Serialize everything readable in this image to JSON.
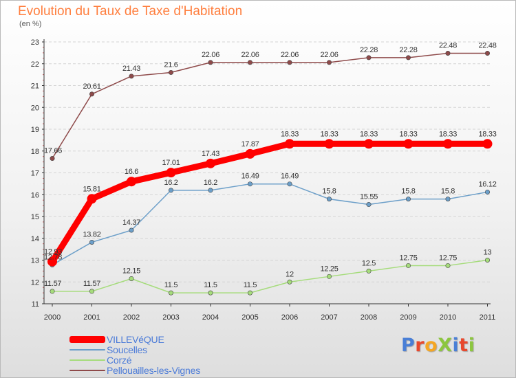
{
  "title": "Evolution du Taux de Taxe d'Habitation",
  "subtitle": "(en %)",
  "logo": {
    "text": "ProXiti",
    "colors": [
      "#4a7fd6",
      "#e8482d",
      "#f5a623",
      "#8cc63f",
      "#4a7fd6",
      "#e8482d",
      "#8cc63f"
    ]
  },
  "chart_data": {
    "type": "line",
    "title": "Evolution du Taux de Taxe d'Habitation",
    "ylabel": "(en %)",
    "xlabel": "",
    "x": [
      "2000",
      "2001",
      "2002",
      "2003",
      "2004",
      "2005",
      "2006",
      "2007",
      "2008",
      "2009",
      "2010",
      "2011"
    ],
    "ylim": [
      11,
      23
    ],
    "yticks": [
      "11",
      "12",
      "13",
      "14",
      "15",
      "16",
      "17",
      "18",
      "19",
      "20",
      "21",
      "22",
      "23"
    ],
    "grid": "horizontal dashed",
    "legend_position": "bottom-left",
    "series": [
      {
        "name": "VILLEVéQUE",
        "color": "#ff0000",
        "emphasis": true,
        "values": [
          12.93,
          15.81,
          16.6,
          17.01,
          17.43,
          17.87,
          18.33,
          18.33,
          18.33,
          18.33,
          18.33,
          18.33
        ],
        "labels": [
          "12.93",
          "15.81",
          "16.6",
          "17.01",
          "17.43",
          "17.87",
          "18.33",
          "18.33",
          "18.33",
          "18.33",
          "18.33",
          "18.33"
        ]
      },
      {
        "name": "Soucelles",
        "color": "#6c9fc9",
        "values": [
          12.78,
          13.82,
          14.37,
          16.2,
          16.2,
          16.49,
          16.49,
          15.8,
          15.55,
          15.8,
          15.8,
          16.12
        ],
        "labels": [
          "12.78",
          "13.82",
          "14.37",
          "16.2",
          "16.2",
          "16.49",
          "16.49",
          "15.8",
          "15.55",
          "15.8",
          "15.8",
          "16.12"
        ]
      },
      {
        "name": "Corzé",
        "color": "#a6dc7c",
        "values": [
          11.57,
          11.57,
          12.15,
          11.5,
          11.5,
          11.5,
          12,
          12.25,
          12.5,
          12.75,
          12.75,
          13
        ],
        "labels": [
          "11.57",
          "11.57",
          "12.15",
          "11.5",
          "11.5",
          "11.5",
          "12",
          "12.25",
          "12.5",
          "12.75",
          "12.75",
          "13"
        ]
      },
      {
        "name": "Pellouailles-les-Vignes",
        "color": "#8e4a4a",
        "values": [
          17.66,
          20.61,
          21.43,
          21.6,
          22.06,
          22.06,
          22.06,
          22.06,
          22.28,
          22.28,
          22.48,
          22.48
        ],
        "labels": [
          "17.66",
          "20.61",
          "21.43",
          "21.6",
          "22.06",
          "22.06",
          "22.06",
          "22.06",
          "22.28",
          "22.28",
          "22.48",
          "22.48"
        ]
      }
    ]
  }
}
